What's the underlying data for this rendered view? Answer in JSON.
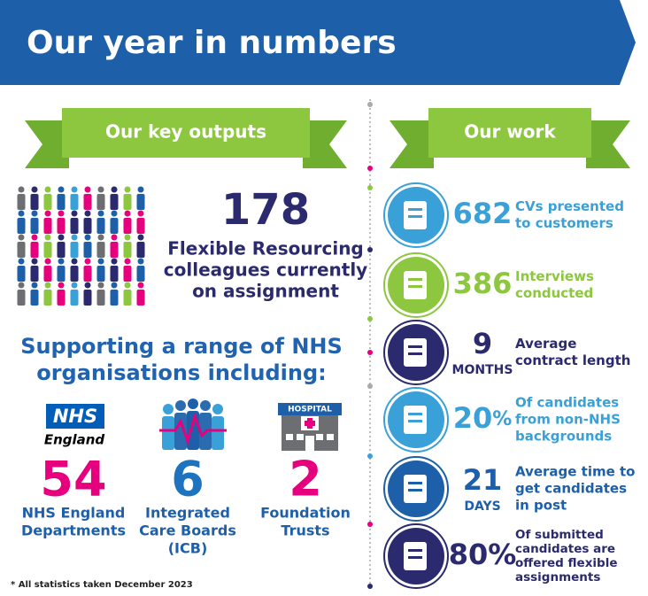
{
  "header": {
    "title": "Our year in numbers"
  },
  "key_outputs": {
    "heading": "Our key outputs",
    "count": "178",
    "count_label": [
      "Flexible Resourcing",
      "colleagues currently",
      "on assignment"
    ],
    "supporting": [
      "Supporting a range of NHS",
      "organisations including:"
    ],
    "organisations": [
      {
        "logo_text": "NHS",
        "logo_sub": "England",
        "number": "54",
        "label": [
          "NHS England",
          "Departments"
        ]
      },
      {
        "number": "6",
        "label": [
          "Integrated",
          "Care Boards",
          "(ICB)"
        ]
      },
      {
        "logo_text": "HOSPITAL",
        "number": "2",
        "label": [
          "Foundation",
          "Trusts"
        ]
      }
    ]
  },
  "work": {
    "heading": "Our work",
    "items": [
      {
        "number": "682",
        "description": [
          "CVs presented",
          "to customers"
        ]
      },
      {
        "number": "386",
        "description": [
          "Interviews",
          "conducted"
        ]
      },
      {
        "number": "9",
        "unit": "MONTHS",
        "description": [
          "Average",
          "contract length"
        ]
      },
      {
        "number": "20",
        "unit": "%",
        "description": [
          "Of candidates",
          "from non-NHS",
          "backgrounds"
        ]
      },
      {
        "number": "21",
        "unit": "DAYS",
        "description": [
          "Average time to",
          "get candidates",
          "in post"
        ]
      },
      {
        "number": "80%",
        "description": [
          "Of submitted",
          "candidates are",
          "offered flexible",
          "assignments"
        ]
      }
    ]
  },
  "footnote": "* All statistics taken December 2023"
}
